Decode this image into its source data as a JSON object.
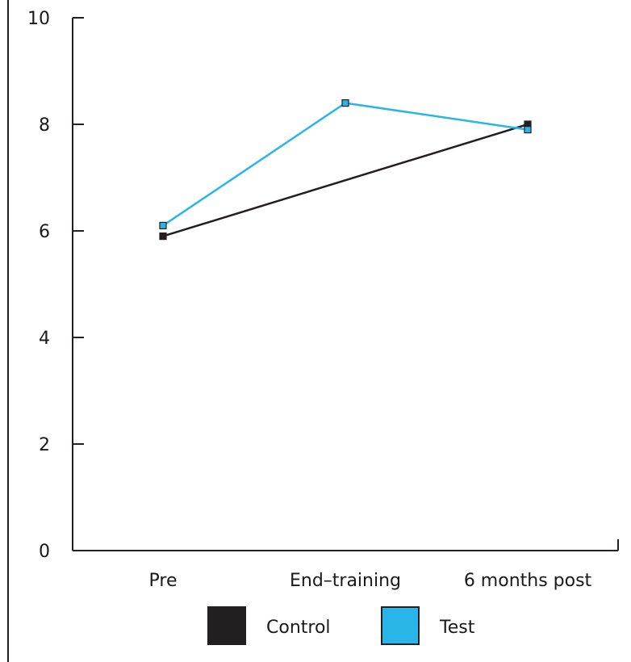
{
  "chart_data": {
    "type": "line",
    "categories": [
      "Pre",
      "End–training",
      "6 months post"
    ],
    "x_tick_labels": [
      "Pre",
      "End–training",
      "6 months post"
    ],
    "y_tick_labels": [
      "0",
      "2",
      "4",
      "6",
      "8",
      "10"
    ],
    "ylim": [
      0,
      10
    ],
    "grid": false,
    "legend_position": "bottom",
    "series": [
      {
        "name": "Control",
        "values": [
          5.9,
          null,
          8.0
        ],
        "color": "#231f20",
        "marker": "square"
      },
      {
        "name": "Test",
        "values": [
          6.1,
          8.4,
          7.9
        ],
        "color": "#29b5e8",
        "marker": "square"
      }
    ]
  }
}
